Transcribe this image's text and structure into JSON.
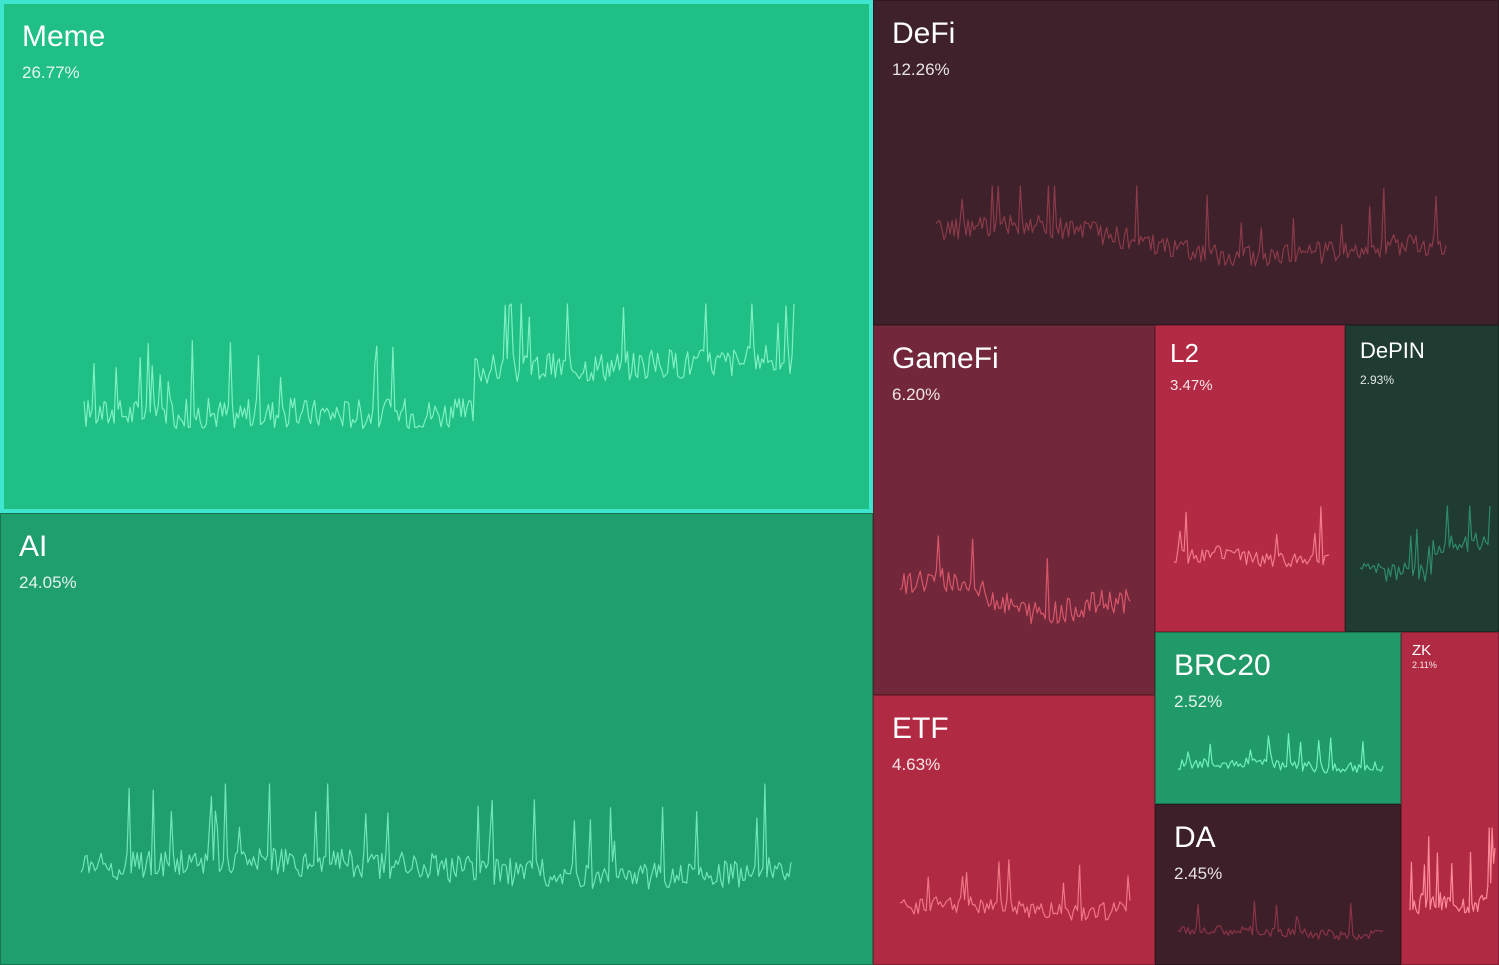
{
  "chart_data": {
    "type": "treemap",
    "sectors": [
      {
        "name": "Meme",
        "share": "26.77%",
        "value": 26.77,
        "color": "#1fbf86",
        "line_color": "#7ff0c4",
        "highlighted": true,
        "trend": "rising"
      },
      {
        "name": "AI",
        "share": "24.05%",
        "value": 24.05,
        "color": "#1f9e6e",
        "line_color": "#6fe6b8",
        "highlighted": false,
        "trend": "flat"
      },
      {
        "name": "DeFi",
        "share": "12.26%",
        "value": 12.26,
        "color": "#3f212b",
        "line_color": "#8a3a48",
        "highlighted": false,
        "trend": "falling"
      },
      {
        "name": "GameFi",
        "share": "6.20%",
        "value": 6.2,
        "color": "#72283a",
        "line_color": "#d9566a",
        "highlighted": false,
        "trend": "falling"
      },
      {
        "name": "ETF",
        "share": "4.63%",
        "value": 4.63,
        "color": "#b02a43",
        "line_color": "#f07585",
        "highlighted": false,
        "trend": "flat"
      },
      {
        "name": "L2",
        "share": "3.47%",
        "value": 3.47,
        "color": "#b32a45",
        "line_color": "#f27a8a",
        "highlighted": false,
        "trend": "flat"
      },
      {
        "name": "DePIN",
        "share": "2.93%",
        "value": 2.93,
        "color": "#1f3b32",
        "line_color": "#2f8a6a",
        "highlighted": false,
        "trend": "rising"
      },
      {
        "name": "BRC20",
        "share": "2.52%",
        "value": 2.52,
        "color": "#1f9a68",
        "line_color": "#6ff0be",
        "highlighted": false,
        "trend": "flat"
      },
      {
        "name": "DA",
        "share": "2.45%",
        "value": 2.45,
        "color": "#3c1f29",
        "line_color": "#8a3346",
        "highlighted": false,
        "trend": "flat"
      },
      {
        "name": "ZK",
        "share": "2.11%",
        "value": 2.11,
        "color": "#b02a43",
        "line_color": "#ff8a98",
        "highlighted": false,
        "trend": "spike"
      }
    ]
  }
}
